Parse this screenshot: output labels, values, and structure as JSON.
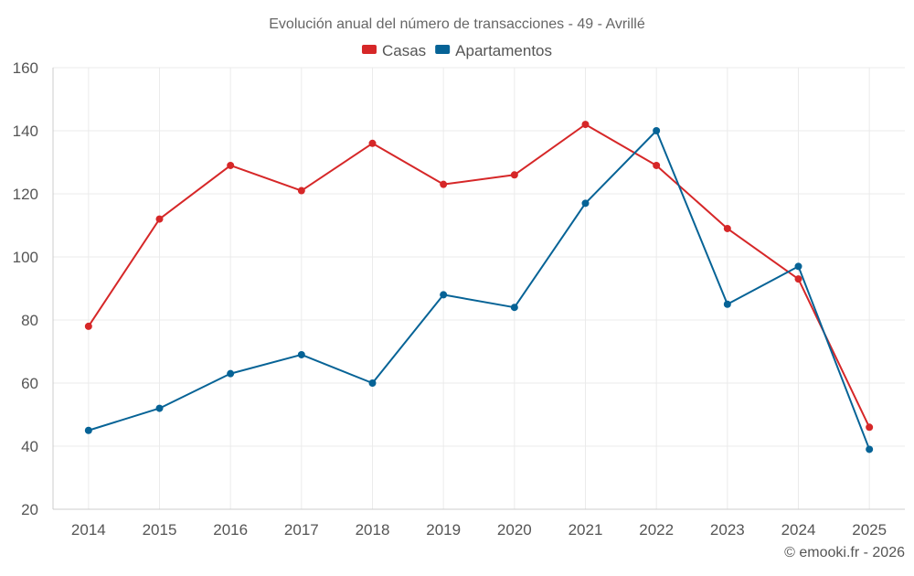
{
  "chart_data": {
    "type": "line",
    "title": "Evolución anual del número de transacciones - 49 - Avrillé",
    "categories": [
      "2014",
      "2015",
      "2016",
      "2017",
      "2018",
      "2019",
      "2020",
      "2021",
      "2022",
      "2023",
      "2024",
      "2025"
    ],
    "series": [
      {
        "name": "Casas",
        "color": "#d62728",
        "values": [
          78,
          112,
          129,
          121,
          136,
          123,
          126,
          142,
          129,
          109,
          93,
          46
        ]
      },
      {
        "name": "Apartamentos",
        "color": "#066396",
        "values": [
          45,
          52,
          63,
          69,
          60,
          88,
          84,
          117,
          140,
          85,
          97,
          39
        ]
      }
    ],
    "ylim": [
      20,
      160
    ],
    "yticks": [
      20,
      40,
      60,
      80,
      100,
      120,
      140,
      160
    ],
    "xlabel": "",
    "ylabel": "",
    "grid": true,
    "legend": "top-center"
  },
  "footer": "© emooki.fr - 2026"
}
